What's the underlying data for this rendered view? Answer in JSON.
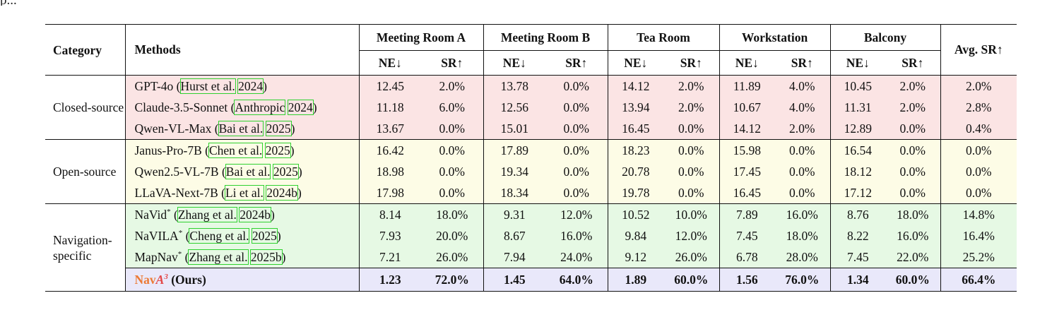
{
  "caption_fragment": "p...",
  "columns": {
    "category": "Category",
    "methods": "Methods",
    "envs": [
      "Meeting Room A",
      "Meeting Room B",
      "Tea Room",
      "Workstation",
      "Balcony"
    ],
    "ne": "NE↓",
    "sr": "SR↑",
    "avg": "Avg. SR↑"
  },
  "categories": {
    "closed": "Closed-source",
    "open": "Open-source",
    "nav": "Navigation-specific"
  },
  "rows": [
    {
      "group": "closed",
      "method": "GPT-4o",
      "star": "",
      "cite_author": "Hurst et al.",
      "cite_year": "2024",
      "values": [
        "12.45",
        "2.0%",
        "13.78",
        "0.0%",
        "14.12",
        "2.0%",
        "11.89",
        "4.0%",
        "10.45",
        "2.0%",
        "2.0%"
      ]
    },
    {
      "group": "closed",
      "method": "Claude-3.5-Sonnet",
      "star": "",
      "cite_author": "Anthropic",
      "cite_year": "2024",
      "values": [
        "11.18",
        "6.0%",
        "12.56",
        "0.0%",
        "13.94",
        "2.0%",
        "10.67",
        "4.0%",
        "11.31",
        "2.0%",
        "2.8%"
      ]
    },
    {
      "group": "closed",
      "method": "Qwen-VL-Max",
      "star": "",
      "cite_author": "Bai et al.",
      "cite_year": "2025",
      "values": [
        "13.67",
        "0.0%",
        "15.01",
        "0.0%",
        "16.45",
        "0.0%",
        "14.12",
        "2.0%",
        "12.89",
        "0.0%",
        "0.4%"
      ]
    },
    {
      "group": "open",
      "method": "Janus-Pro-7B",
      "star": "",
      "cite_author": "Chen et al.",
      "cite_year": "2025",
      "values": [
        "16.42",
        "0.0%",
        "17.89",
        "0.0%",
        "18.23",
        "0.0%",
        "15.98",
        "0.0%",
        "16.54",
        "0.0%",
        "0.0%"
      ]
    },
    {
      "group": "open",
      "method": "Qwen2.5-VL-7B",
      "star": "",
      "cite_author": "Bai et al.",
      "cite_year": "2025",
      "values": [
        "18.98",
        "0.0%",
        "19.34",
        "0.0%",
        "20.78",
        "0.0%",
        "17.45",
        "0.0%",
        "18.12",
        "0.0%",
        "0.0%"
      ]
    },
    {
      "group": "open",
      "method": "LLaVA-Next-7B",
      "star": "",
      "cite_author": "Li et al.",
      "cite_year": "2024b",
      "values": [
        "17.98",
        "0.0%",
        "18.34",
        "0.0%",
        "19.78",
        "0.0%",
        "16.45",
        "0.0%",
        "17.12",
        "0.0%",
        "0.0%"
      ]
    },
    {
      "group": "nav",
      "method": "NaVid",
      "star": "*",
      "cite_author": "Zhang et al.",
      "cite_year": "2024b",
      "values": [
        "8.14",
        "18.0%",
        "9.31",
        "12.0%",
        "10.52",
        "10.0%",
        "7.89",
        "16.0%",
        "8.76",
        "18.0%",
        "14.8%"
      ]
    },
    {
      "group": "nav",
      "method": "NaVILA",
      "star": "*",
      "cite_author": "Cheng et al.",
      "cite_year": "2025",
      "values": [
        "7.93",
        "20.0%",
        "8.67",
        "16.0%",
        "9.84",
        "12.0%",
        "7.45",
        "18.0%",
        "8.22",
        "16.0%",
        "16.4%"
      ]
    },
    {
      "group": "nav",
      "method": "MapNav",
      "star": "*",
      "cite_author": "Zhang et al.",
      "cite_year": "2025b",
      "values": [
        "7.21",
        "26.0%",
        "7.94",
        "24.0%",
        "9.12",
        "26.0%",
        "6.78",
        "28.0%",
        "7.45",
        "22.0%",
        "25.2%"
      ]
    }
  ],
  "ours": {
    "brand": "Nav",
    "brand_a": "A",
    "brand_sup": "3",
    "suffix": " (Ours)",
    "values": [
      "1.23",
      "72.0%",
      "1.45",
      "64.0%",
      "1.89",
      "60.0%",
      "1.56",
      "76.0%",
      "1.34",
      "60.0%",
      "66.4%"
    ]
  },
  "colors": {
    "closed_bg": "#fbe4e4",
    "open_bg": "#fdfce6",
    "nav_bg": "#e6f9e4",
    "ours_bg": "#e9e8fa",
    "cite_box": "#2fd12f",
    "brand_orange": "#ec7a35",
    "brand_red": "#e34848"
  }
}
